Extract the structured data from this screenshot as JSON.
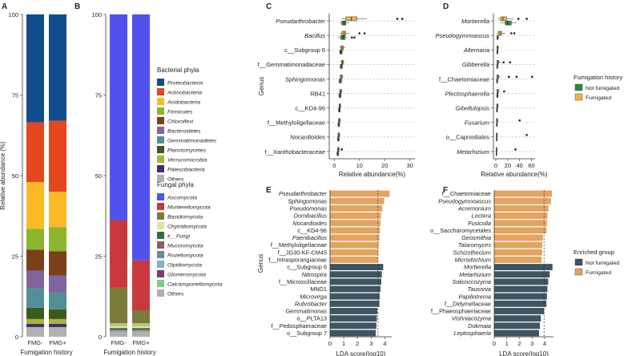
{
  "panels": {
    "A": "A",
    "B": "B",
    "C": "C",
    "D": "D",
    "E": "E",
    "F": "F"
  },
  "colors": {
    "not_fumigated": "#3f5561",
    "fumigated": "#f2b24b",
    "lda_fumigated": "#e5a35f",
    "lda_not_fumigated": "#3f5561",
    "box_not_fumigated": "#2e8b3e",
    "box_fumigated": "#f2b24b"
  },
  "chart_data": [
    {
      "id": "A",
      "type": "bar",
      "stacked": true,
      "title": "",
      "xlabel": "Fumigation history",
      "ylabel": "Relative abundance (%)",
      "ylim": [
        0,
        100
      ],
      "yticks": [
        0,
        25,
        50,
        75,
        100
      ],
      "categories": [
        "FMG-",
        "FMG+"
      ],
      "series": [
        {
          "name": "Others",
          "color": "#b0b0b0",
          "values": [
            3.0,
            3.0
          ]
        },
        {
          "name": "Patescibacteria",
          "color": "#4b2a66",
          "values": [
            1.0,
            1.0
          ]
        },
        {
          "name": "Verrucomicrobia",
          "color": "#a7b43c",
          "values": [
            1.5,
            1.5
          ]
        },
        {
          "name": "Planctomycetes",
          "color": "#3c5a1e",
          "values": [
            3.5,
            3.0
          ]
        },
        {
          "name": "Gemmatimonadetes",
          "color": "#4f8f95",
          "values": [
            6.0,
            5.0
          ]
        },
        {
          "name": "Bacteroidetes",
          "color": "#8064a0",
          "values": [
            5.5,
            5.5
          ]
        },
        {
          "name": "Chloroflexi",
          "color": "#7b3f1a",
          "values": [
            6.5,
            7.5
          ]
        },
        {
          "name": "Firmicutes",
          "color": "#8db42e",
          "values": [
            6.5,
            7.5
          ]
        },
        {
          "name": "Acidobacteria",
          "color": "#fbb925",
          "values": [
            14.5,
            11.0
          ]
        },
        {
          "name": "Actinobacteria",
          "color": "#e5471d",
          "values": [
            18.5,
            22.0
          ]
        },
        {
          "name": "Proteobacteria",
          "color": "#114d8c",
          "values": [
            33.5,
            33.0
          ]
        }
      ]
    },
    {
      "id": "B",
      "type": "bar",
      "stacked": true,
      "title": "",
      "xlabel": "Fumigation history",
      "ylabel": "",
      "ylim": [
        0,
        100
      ],
      "yticks": [
        0,
        25,
        50,
        75,
        100
      ],
      "categories": [
        "FMG-",
        "FMG+"
      ],
      "series": [
        {
          "name": "Others",
          "color": "#b0b0b0",
          "values": [
            1.5,
            1.5
          ]
        },
        {
          "name": "Calcarisporiellomycota",
          "color": "#7fcf8c",
          "values": [
            0.1,
            0.1
          ]
        },
        {
          "name": "Glomeromycota",
          "color": "#7a3b6e",
          "values": [
            0.1,
            0.1
          ]
        },
        {
          "name": "Olpidiomycota",
          "color": "#7ab7c8",
          "values": [
            0.1,
            0.1
          ]
        },
        {
          "name": "Rozellomycota",
          "color": "#6e8a9a",
          "values": [
            0.1,
            0.1
          ]
        },
        {
          "name": "Mucoromycota",
          "color": "#8b5f5f",
          "values": [
            0.3,
            0.3
          ]
        },
        {
          "name": "k__Fungi",
          "color": "#2f6d45",
          "values": [
            0.5,
            0.5
          ]
        },
        {
          "name": "Chytridiomycota",
          "color": "#dfe3a6",
          "values": [
            0.5,
            0.5
          ]
        },
        {
          "name": "Glomeromycota_dup",
          "color": "#b9c57d",
          "values": [
            1.0,
            1.0
          ]
        },
        {
          "name": "Basidiomycota",
          "color": "#7a7a3a",
          "values": [
            11.0,
            4.0
          ]
        },
        {
          "name": "Mortierellomycota",
          "color": "#c9383e",
          "values": [
            21.0,
            15.5
          ]
        },
        {
          "name": "Ascomycota",
          "color": "#5151f0",
          "values": [
            63.8,
            76.3
          ]
        }
      ]
    },
    {
      "id": "C",
      "type": "box",
      "title": "",
      "xlabel": "Relative abundance(%)",
      "ylabel": "Genus",
      "xlim": [
        -2,
        32
      ],
      "xticks": [
        0,
        10,
        20,
        30
      ],
      "categories": [
        "Pseudarthrobacter",
        "Bacillus",
        "c__Subgroup 6",
        "f__Gemmatimonadaceae",
        "Sphingomonas",
        "RB41",
        "c__KD4-96",
        "f__Methyloligellaceae",
        "Nocardioides",
        "f__Xanthobacteraceae"
      ],
      "not_fumigated": [
        {
          "min": 2.2,
          "q1": 3.0,
          "med": 3.8,
          "q3": 4.6,
          "max": 5.8,
          "outliers": []
        },
        {
          "min": 1.5,
          "q1": 2.6,
          "med": 3.5,
          "q3": 4.3,
          "max": 5.2,
          "outliers": [
            7.0,
            8.0
          ]
        },
        {
          "min": 1.8,
          "q1": 2.2,
          "med": 2.7,
          "q3": 3.1,
          "max": 3.6,
          "outliers": []
        },
        {
          "min": 2.0,
          "q1": 2.4,
          "med": 2.8,
          "q3": 3.2,
          "max": 3.6,
          "outliers": []
        },
        {
          "min": 1.7,
          "q1": 2.0,
          "med": 2.4,
          "q3": 2.8,
          "max": 3.3,
          "outliers": []
        },
        {
          "min": 1.6,
          "q1": 1.9,
          "med": 2.3,
          "q3": 2.6,
          "max": 3.0,
          "outliers": []
        },
        {
          "min": 1.4,
          "q1": 1.7,
          "med": 2.0,
          "q3": 2.3,
          "max": 2.7,
          "outliers": []
        },
        {
          "min": 1.2,
          "q1": 1.5,
          "med": 1.8,
          "q3": 2.1,
          "max": 2.4,
          "outliers": []
        },
        {
          "min": 1.0,
          "q1": 1.3,
          "med": 1.6,
          "q3": 1.9,
          "max": 2.2,
          "outliers": []
        },
        {
          "min": 0.8,
          "q1": 1.1,
          "med": 1.4,
          "q3": 1.7,
          "max": 2.0,
          "outliers": []
        }
      ],
      "fumigated": [
        {
          "min": 3.0,
          "q1": 4.6,
          "med": 6.8,
          "q3": 9.0,
          "max": 13.0,
          "outliers": [
            25.0,
            27.0
          ]
        },
        {
          "min": 2.2,
          "q1": 3.0,
          "med": 3.8,
          "q3": 4.6,
          "max": 6.0,
          "outliers": [
            10.0,
            12.0
          ]
        },
        {
          "min": 2.0,
          "q1": 2.6,
          "med": 3.1,
          "q3": 3.6,
          "max": 4.4,
          "outliers": []
        },
        {
          "min": 2.3,
          "q1": 2.8,
          "med": 3.2,
          "q3": 3.6,
          "max": 4.2,
          "outliers": []
        },
        {
          "min": 2.0,
          "q1": 2.4,
          "med": 2.8,
          "q3": 3.2,
          "max": 3.7,
          "outliers": []
        },
        {
          "min": 1.8,
          "q1": 2.2,
          "med": 2.5,
          "q3": 2.9,
          "max": 3.3,
          "outliers": []
        },
        {
          "min": 1.6,
          "q1": 1.9,
          "med": 2.2,
          "q3": 2.5,
          "max": 2.9,
          "outliers": []
        },
        {
          "min": 1.4,
          "q1": 1.7,
          "med": 2.0,
          "q3": 2.3,
          "max": 2.7,
          "outliers": []
        },
        {
          "min": 1.2,
          "q1": 1.5,
          "med": 1.8,
          "q3": 2.1,
          "max": 2.5,
          "outliers": []
        },
        {
          "min": 1.0,
          "q1": 1.3,
          "med": 1.6,
          "q3": 1.9,
          "max": 2.3,
          "outliers": [
            3.0
          ]
        }
      ]
    },
    {
      "id": "D",
      "type": "box",
      "title": "",
      "xlabel": "Relative abundance(%)",
      "ylabel": "",
      "xlim": [
        -4,
        66
      ],
      "xticks": [
        0,
        20,
        40,
        60
      ],
      "categories": [
        "Mortierella",
        "Pseudogymnoascus",
        "Alternaria",
        "Gibberella",
        "f__Chaetomiaceae",
        "Plectosphaerella",
        "Gibellulopsis",
        "Fusarium",
        "o__Capnodiales",
        "Metarhizium"
      ],
      "not_fumigated": [
        {
          "min": 8.0,
          "q1": 16.0,
          "med": 20.0,
          "q3": 26.0,
          "max": 34.0,
          "outliers": []
        },
        {
          "min": 1.0,
          "q1": 2.0,
          "med": 3.0,
          "q3": 4.0,
          "max": 6.0,
          "outliers": []
        },
        {
          "min": 1.0,
          "q1": 1.8,
          "med": 2.6,
          "q3": 3.4,
          "max": 5.0,
          "outliers": []
        },
        {
          "min": 0.8,
          "q1": 1.6,
          "med": 2.4,
          "q3": 3.2,
          "max": 5.0,
          "outliers": []
        },
        {
          "min": 0.6,
          "q1": 1.4,
          "med": 2.2,
          "q3": 3.0,
          "max": 4.5,
          "outliers": []
        },
        {
          "min": 0.8,
          "q1": 1.6,
          "med": 2.6,
          "q3": 3.6,
          "max": 6.0,
          "outliers": []
        },
        {
          "min": 0.6,
          "q1": 1.2,
          "med": 2.0,
          "q3": 2.8,
          "max": 4.0,
          "outliers": []
        },
        {
          "min": 0.4,
          "q1": 1.0,
          "med": 1.6,
          "q3": 2.2,
          "max": 3.4,
          "outliers": []
        },
        {
          "min": 0.2,
          "q1": 0.8,
          "med": 1.2,
          "q3": 1.8,
          "max": 3.0,
          "outliers": []
        },
        {
          "min": 0.1,
          "q1": 0.4,
          "med": 0.8,
          "q3": 1.2,
          "max": 2.0,
          "outliers": []
        }
      ],
      "fumigated": [
        {
          "min": 4.0,
          "q1": 8.0,
          "med": 12.0,
          "q3": 18.0,
          "max": 30.0,
          "outliers": [
            38.0,
            52.0
          ]
        },
        {
          "min": 2.0,
          "q1": 4.0,
          "med": 7.0,
          "q3": 10.0,
          "max": 16.0,
          "outliers": [
            26.0,
            31.0
          ]
        },
        {
          "min": 1.0,
          "q1": 2.0,
          "med": 3.0,
          "q3": 4.0,
          "max": 6.0,
          "outliers": []
        },
        {
          "min": 1.0,
          "q1": 2.0,
          "med": 3.5,
          "q3": 5.0,
          "max": 8.0,
          "outliers": [
            13.0,
            24.0
          ]
        },
        {
          "min": 1.0,
          "q1": 2.0,
          "med": 3.0,
          "q3": 5.0,
          "max": 9.0,
          "outliers": [
            22.0,
            35.0,
            61.0
          ]
        },
        {
          "min": 1.0,
          "q1": 2.0,
          "med": 3.0,
          "q3": 4.5,
          "max": 7.0,
          "outliers": [
            14.0
          ]
        },
        {
          "min": 0.8,
          "q1": 1.6,
          "med": 2.6,
          "q3": 3.6,
          "max": 5.0,
          "outliers": []
        },
        {
          "min": 0.5,
          "q1": 1.2,
          "med": 2.0,
          "q3": 3.0,
          "max": 4.5,
          "outliers": [
            40.0
          ]
        },
        {
          "min": 0.4,
          "q1": 1.0,
          "med": 1.6,
          "q3": 2.4,
          "max": 3.6,
          "outliers": [
            52.0
          ]
        },
        {
          "min": 0.2,
          "q1": 0.6,
          "med": 1.2,
          "q3": 1.8,
          "max": 3.0,
          "outliers": [
            33.0
          ]
        }
      ]
    },
    {
      "id": "E",
      "type": "bar",
      "orientation": "horizontal",
      "title": "",
      "xlabel": "LDA score(log10)",
      "ylabel": "Genus",
      "xlim": [
        0,
        4.5
      ],
      "xticks": [
        0,
        1,
        2,
        3,
        4
      ],
      "threshold": 3.5,
      "categories": [
        "Pseudarthrobacter",
        "Sphingomonas",
        "Pseudomonas",
        "Domibacillus",
        "Nocardioides",
        "c__KD4-96",
        "Paenibacillus",
        "f__Methyloligellaceae",
        "f__JG30-KF-CM45",
        "f__Intrasporangiaceae",
        "c__Subgroup 6",
        "Nitrospira",
        "f__Microscillaceae",
        "MND1",
        "Microvirga",
        "Rubrobacter",
        "Gemmatimonas",
        "o__PLTA13",
        "f__Pedosphaeraceae",
        "o__Subgroup 7"
      ],
      "values": [
        4.35,
        3.95,
        3.82,
        3.72,
        3.68,
        3.64,
        3.6,
        3.55,
        3.52,
        3.5,
        3.88,
        3.78,
        3.74,
        3.68,
        3.62,
        3.6,
        3.46,
        3.42,
        3.38,
        3.34
      ],
      "groups": [
        "Fumigated",
        "Fumigated",
        "Fumigated",
        "Fumigated",
        "Fumigated",
        "Fumigated",
        "Fumigated",
        "Fumigated",
        "Fumigated",
        "Fumigated",
        "Not fumigated",
        "Not fumigated",
        "Not fumigated",
        "Not fumigated",
        "Not fumigated",
        "Not fumigated",
        "Not fumigated",
        "Not fumigated",
        "Not fumigated",
        "Not fumigated"
      ]
    },
    {
      "id": "F",
      "type": "bar",
      "orientation": "horizontal",
      "title": "",
      "xlabel": "LDA score(log10)",
      "ylabel": "",
      "xlim": [
        0,
        4.7
      ],
      "xticks": [
        0,
        1,
        2,
        3,
        4
      ],
      "threshold": 3.95,
      "categories": [
        "f__Chaetomiaceae",
        "Pseudogymnoascus",
        "Acremonium",
        "Lectera",
        "Fusicolla",
        "o__Saccharomycetales",
        "Geosmithia",
        "Talaromyces",
        "Schizothecium",
        "Microdochium",
        "Mortierella",
        "Metarhizium",
        "Solicoccozyma",
        "Tausonia",
        "Papiliotrema",
        "f__Didymellaceae",
        "f__Phaeosphaeriaceae",
        "Vishniacozyma",
        "Dokmaia",
        "Leptosphaeria"
      ],
      "values": [
        4.58,
        4.5,
        4.3,
        4.22,
        4.18,
        4.14,
        3.86,
        3.82,
        3.8,
        3.76,
        4.62,
        4.4,
        4.28,
        4.22,
        4.18,
        4.14,
        3.95,
        3.7,
        3.62,
        3.55
      ],
      "groups": [
        "Fumigated",
        "Fumigated",
        "Fumigated",
        "Fumigated",
        "Fumigated",
        "Fumigated",
        "Fumigated",
        "Fumigated",
        "Fumigated",
        "Fumigated",
        "Not fumigated",
        "Not fumigated",
        "Not fumigated",
        "Not fumigated",
        "Not fumigated",
        "Not fumigated",
        "Not fumigated",
        "Not fumigated",
        "Not fumigated",
        "Not fumigated"
      ]
    }
  ],
  "legends": {
    "bacterial": {
      "title": "Bacterial phyla",
      "items": [
        {
          "label": "Proteobacteria",
          "color": "#114d8c"
        },
        {
          "label": "Actinobacteria",
          "color": "#e5471d"
        },
        {
          "label": "Acidobacteria",
          "color": "#fbb925"
        },
        {
          "label": "Firmicutes",
          "color": "#8db42e"
        },
        {
          "label": "Chloroflexi",
          "color": "#7b3f1a"
        },
        {
          "label": "Bacteroidetes",
          "color": "#8064a0"
        },
        {
          "label": "Gemmatimonadetes",
          "color": "#4f8f95"
        },
        {
          "label": "Planctomycetes",
          "color": "#3c5a1e"
        },
        {
          "label": "Verrucomicrobia",
          "color": "#a7b43c"
        },
        {
          "label": "Patescibacteria",
          "color": "#4b2a66"
        },
        {
          "label": "Others",
          "color": "#b0b0b0"
        }
      ]
    },
    "fungal": {
      "title": "Fungal phyla",
      "items": [
        {
          "label": "Ascomycota",
          "color": "#5151f0"
        },
        {
          "label": "Mortierellomycota",
          "color": "#c9383e"
        },
        {
          "label": "Basidiomycota",
          "color": "#7a7a3a"
        },
        {
          "label": "Chytridiomycota",
          "color": "#dfe3a6"
        },
        {
          "label": "k__Fungi",
          "color": "#2f6d45"
        },
        {
          "label": "Mucoromycota",
          "color": "#8b5f5f"
        },
        {
          "label": "Rozellomycota",
          "color": "#6e8a9a"
        },
        {
          "label": "Olpidiomycota",
          "color": "#7ab7c8"
        },
        {
          "label": "Glomeromycota",
          "color": "#7a3b6e"
        },
        {
          "label": "Calcarisporiellomycota",
          "color": "#7fcf8c"
        },
        {
          "label": "Others",
          "color": "#b0b0b0"
        }
      ]
    },
    "fumigation": {
      "title": "Fumigation history",
      "items": [
        {
          "label": "Not fumigated",
          "color": "#2e8b3e"
        },
        {
          "label": "Fumigated",
          "color": "#f2b24b"
        }
      ]
    },
    "enriched": {
      "title": "Enriched group",
      "items": [
        {
          "label": "Not fumigated",
          "color": "#3f5561"
        },
        {
          "label": "Fumigated",
          "color": "#e5a35f"
        }
      ]
    }
  }
}
